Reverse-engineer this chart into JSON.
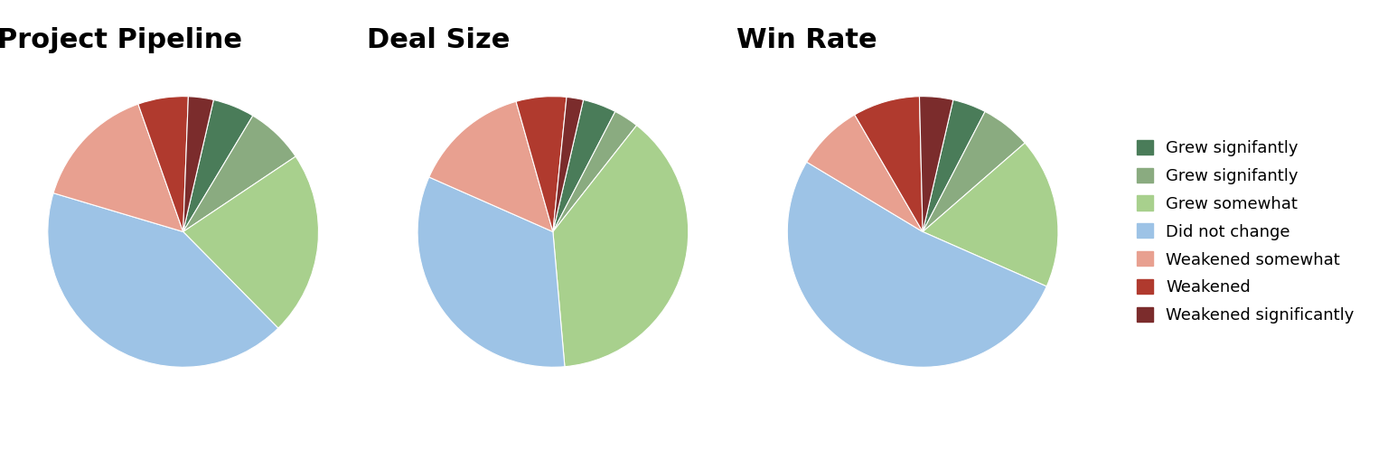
{
  "titles": [
    "Project Pipeline",
    "Deal Size",
    "Win Rate"
  ],
  "colors": [
    "#4a7c59",
    "#8aab80",
    "#a8d08d",
    "#9dc3e6",
    "#e8a090",
    "#b03a2e",
    "#7b2c2c"
  ],
  "pie1_values": [
    5,
    7,
    22,
    42,
    15,
    6,
    3
  ],
  "pie2_values": [
    4,
    3,
    38,
    33,
    14,
    6,
    2
  ],
  "pie3_values": [
    4,
    6,
    18,
    52,
    8,
    8,
    4
  ],
  "pie1_startangle": 77,
  "pie2_startangle": 77,
  "pie3_startangle": 77,
  "legend_labels": [
    "Grew signifantly",
    "Grew signifantly",
    "Grew somewhat",
    "Did not change",
    "Weakened somewhat",
    "Weakened",
    "Weakened significantly"
  ],
  "title_fontsize": 22,
  "title_fontweight": "bold",
  "title_fontfamily": "sans-serif",
  "legend_fontsize": 13,
  "background_color": "#ffffff"
}
